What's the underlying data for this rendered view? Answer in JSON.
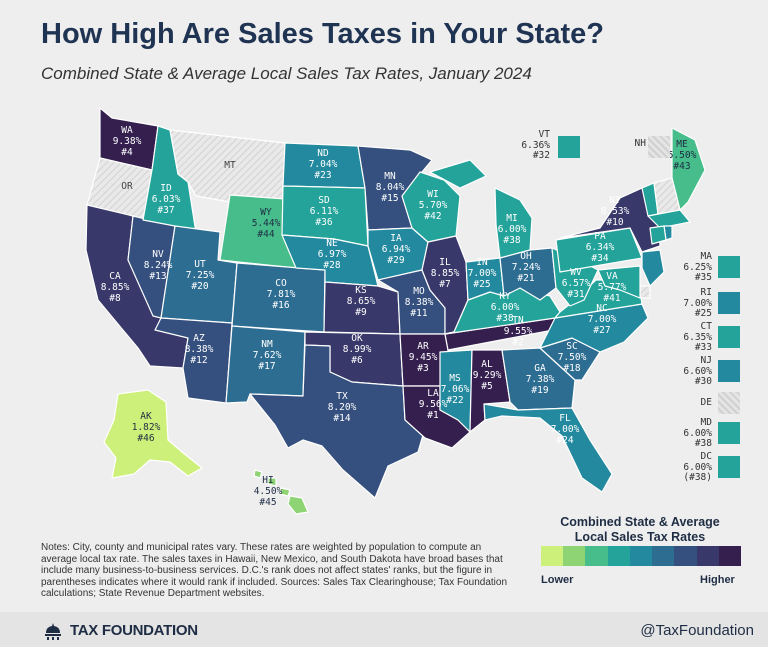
{
  "header": {
    "title": "How High Are Sales Taxes in Your State?",
    "subtitle": "Combined State & Average Local Sales Tax Rates, January 2024"
  },
  "colors": {
    "ramp": [
      "#cdf07a",
      "#8ed474",
      "#46bd8a",
      "#23a39a",
      "#23899e",
      "#2e6d92",
      "#35507e",
      "#38386a",
      "#341f4f"
    ],
    "no_tax": "#dcdcdc",
    "background": "#eeeeee"
  },
  "states": [
    {
      "abbr": "WA",
      "rate": "9.38%",
      "rank": "#4",
      "level": 8
    },
    {
      "abbr": "OR",
      "rate": "",
      "rank": "",
      "level": -1
    },
    {
      "abbr": "CA",
      "rate": "8.85%",
      "rank": "#8",
      "level": 7
    },
    {
      "abbr": "NV",
      "rate": "8.24%",
      "rank": "#13",
      "level": 6
    },
    {
      "abbr": "ID",
      "rate": "6.03%",
      "rank": "#37",
      "level": 3
    },
    {
      "abbr": "MT",
      "rate": "",
      "rank": "",
      "level": -1
    },
    {
      "abbr": "WY",
      "rate": "5.44%",
      "rank": "#44",
      "level": 2
    },
    {
      "abbr": "UT",
      "rate": "7.25%",
      "rank": "#20",
      "level": 5
    },
    {
      "abbr": "AZ",
      "rate": "8.38%",
      "rank": "#12",
      "level": 6
    },
    {
      "abbr": "CO",
      "rate": "7.81%",
      "rank": "#16",
      "level": 5
    },
    {
      "abbr": "NM",
      "rate": "7.62%",
      "rank": "#17",
      "level": 5
    },
    {
      "abbr": "ND",
      "rate": "7.04%",
      "rank": "#23",
      "level": 4
    },
    {
      "abbr": "SD",
      "rate": "6.11%",
      "rank": "#36",
      "level": 3
    },
    {
      "abbr": "NE",
      "rate": "6.97%",
      "rank": "#28",
      "level": 4
    },
    {
      "abbr": "KS",
      "rate": "8.65%",
      "rank": "#9",
      "level": 7
    },
    {
      "abbr": "OK",
      "rate": "8.99%",
      "rank": "#6",
      "level": 7
    },
    {
      "abbr": "TX",
      "rate": "8.20%",
      "rank": "#14",
      "level": 6
    },
    {
      "abbr": "MN",
      "rate": "8.04%",
      "rank": "#15",
      "level": 6
    },
    {
      "abbr": "IA",
      "rate": "6.94%",
      "rank": "#29",
      "level": 4
    },
    {
      "abbr": "MO",
      "rate": "8.38%",
      "rank": "#11",
      "level": 6
    },
    {
      "abbr": "AR",
      "rate": "9.45%",
      "rank": "#3",
      "level": 8
    },
    {
      "abbr": "LA",
      "rate": "9.56%",
      "rank": "#1",
      "level": 8
    },
    {
      "abbr": "WI",
      "rate": "5.70%",
      "rank": "#42",
      "level": 3
    },
    {
      "abbr": "IL",
      "rate": "8.85%",
      "rank": "#7",
      "level": 7
    },
    {
      "abbr": "MS",
      "rate": "7.06%",
      "rank": "#22",
      "level": 4
    },
    {
      "abbr": "AL",
      "rate": "9.29%",
      "rank": "#5",
      "level": 8
    },
    {
      "abbr": "TN",
      "rate": "9.55%",
      "rank": "#2",
      "level": 8
    },
    {
      "abbr": "KY",
      "rate": "6.00%",
      "rank": "#38",
      "level": 3
    },
    {
      "abbr": "IN",
      "rate": "7.00%",
      "rank": "#25",
      "level": 4
    },
    {
      "abbr": "MI",
      "rate": "6.00%",
      "rank": "#38",
      "level": 3
    },
    {
      "abbr": "OH",
      "rate": "7.24%",
      "rank": "#21",
      "level": 5
    },
    {
      "abbr": "GA",
      "rate": "7.38%",
      "rank": "#19",
      "level": 5
    },
    {
      "abbr": "FL",
      "rate": "7.00%",
      "rank": "#24",
      "level": 4
    },
    {
      "abbr": "SC",
      "rate": "7.50%",
      "rank": "#18",
      "level": 5
    },
    {
      "abbr": "NC",
      "rate": "7.00%",
      "rank": "#27",
      "level": 4
    },
    {
      "abbr": "VA",
      "rate": "5.77%",
      "rank": "#41",
      "level": 3
    },
    {
      "abbr": "WV",
      "rate": "6.57%",
      "rank": "#31",
      "level": 3
    },
    {
      "abbr": "PA",
      "rate": "6.34%",
      "rank": "#34",
      "level": 3
    },
    {
      "abbr": "NY",
      "rate": "8.53%",
      "rank": "#10",
      "level": 7
    },
    {
      "abbr": "ME",
      "rate": "5.50%",
      "rank": "#43",
      "level": 2
    },
    {
      "abbr": "AK",
      "rate": "1.82%",
      "rank": "#46",
      "level": 0
    },
    {
      "abbr": "HI",
      "rate": "4.50%",
      "rank": "#45",
      "level": 1
    }
  ],
  "side_states": [
    {
      "abbr": "VT",
      "rate": "6.36%",
      "rank": "#32",
      "level": 3
    },
    {
      "abbr": "NH",
      "rate": "",
      "rank": "",
      "level": -1
    },
    {
      "abbr": "MA",
      "rate": "6.25%",
      "rank": "#35",
      "level": 3
    },
    {
      "abbr": "RI",
      "rate": "7.00%",
      "rank": "#25",
      "level": 4
    },
    {
      "abbr": "CT",
      "rate": "6.35%",
      "rank": "#33",
      "level": 3
    },
    {
      "abbr": "NJ",
      "rate": "6.60%",
      "rank": "#30",
      "level": 4
    },
    {
      "abbr": "DE",
      "rate": "",
      "rank": "",
      "level": -1
    },
    {
      "abbr": "MD",
      "rate": "6.00%",
      "rank": "#38",
      "level": 3
    },
    {
      "abbr": "DC",
      "rate": "6.00%",
      "rank": "(#38)",
      "level": 3
    }
  ],
  "notes": "Notes: City, county and municipal rates vary. These rates are weighted by population to compute an average local tax rate. The sales taxes in Hawaii, New Mexico, and South Dakota have broad bases that include many business-to-business services. D.C.'s rank does not affect states' ranks, but the figure in parentheses indicates where it would rank if included. Sources: Sales Tax Clearinghouse; Tax Foundation calculations; State Revenue Department websites.",
  "legend": {
    "title": "Combined State & Average Local Sales Tax Rates",
    "low_label": "Lower",
    "high_label": "Higher"
  },
  "footer": {
    "brand": "TAX FOUNDATION",
    "handle": "@TaxFoundation"
  }
}
